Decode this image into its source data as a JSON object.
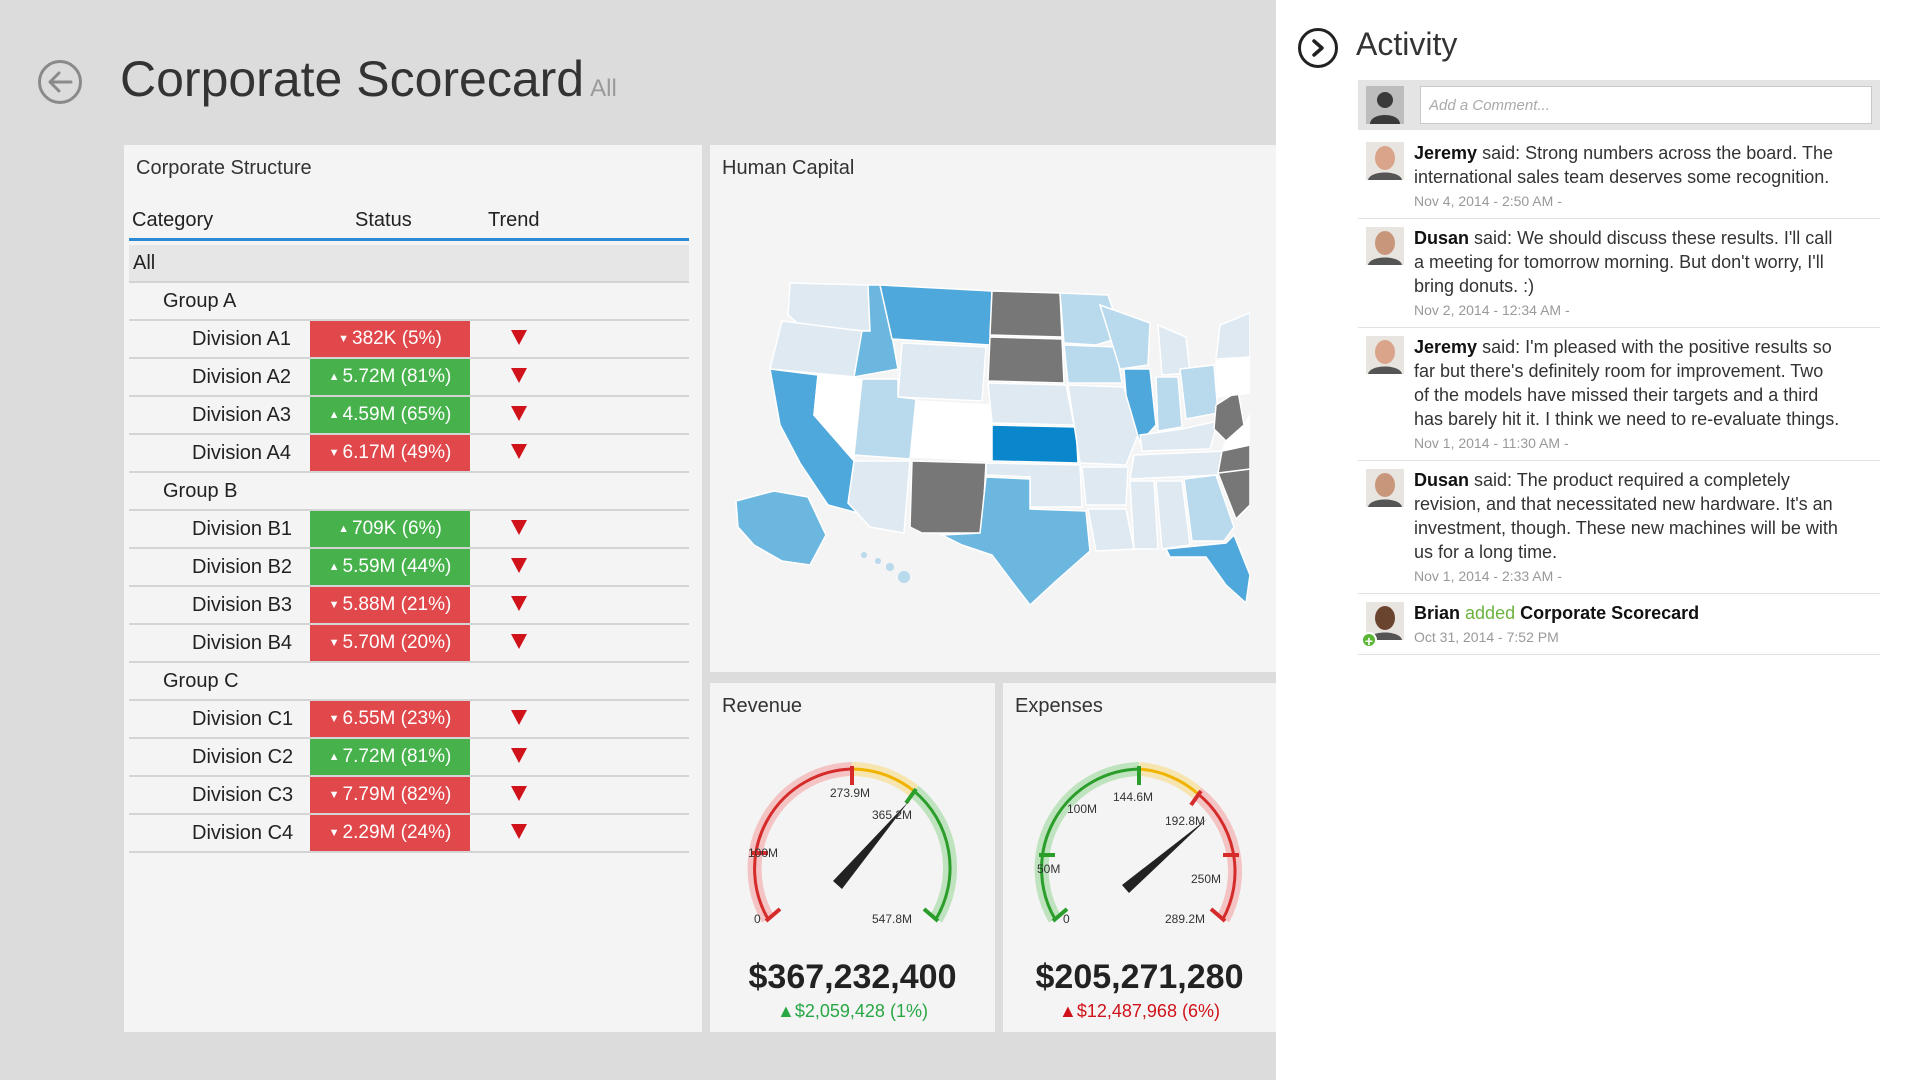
{
  "header": {
    "title": "Corporate Scorecard",
    "subtitle": "All"
  },
  "corporate_structure": {
    "title": "Corporate Structure",
    "columns": [
      "Category",
      "Status",
      "Trend"
    ],
    "all_label": "All",
    "groups": [
      {
        "name": "Group A",
        "divisions": [
          {
            "name": "Division A1",
            "status": "382K (5%)",
            "direction": "down",
            "color": "red"
          },
          {
            "name": "Division A2",
            "status": "5.72M (81%)",
            "direction": "up",
            "color": "green"
          },
          {
            "name": "Division A3",
            "status": "4.59M (65%)",
            "direction": "up",
            "color": "green"
          },
          {
            "name": "Division A4",
            "status": "6.17M (49%)",
            "direction": "down",
            "color": "red"
          }
        ]
      },
      {
        "name": "Group B",
        "divisions": [
          {
            "name": "Division B1",
            "status": "709K (6%)",
            "direction": "up",
            "color": "green"
          },
          {
            "name": "Division B2",
            "status": "5.59M (44%)",
            "direction": "up",
            "color": "green"
          },
          {
            "name": "Division B3",
            "status": "5.88M (21%)",
            "direction": "down",
            "color": "red"
          },
          {
            "name": "Division B4",
            "status": "5.70M (20%)",
            "direction": "down",
            "color": "red"
          }
        ]
      },
      {
        "name": "Group C",
        "divisions": [
          {
            "name": "Division C1",
            "status": "6.55M (23%)",
            "direction": "down",
            "color": "red"
          },
          {
            "name": "Division C2",
            "status": "7.72M (81%)",
            "direction": "up",
            "color": "green"
          },
          {
            "name": "Division C3",
            "status": "7.79M (82%)",
            "direction": "down",
            "color": "red"
          },
          {
            "name": "Division C4",
            "status": "2.29M (24%)",
            "direction": "down",
            "color": "red"
          }
        ]
      }
    ],
    "trend": "down"
  },
  "human_capital": {
    "title": "Human Capital",
    "palette": {
      "light": "#dfe9f1",
      "mid": "#b9d9ec",
      "strong": "#6cb7e0",
      "bright": "#4fa8db",
      "highlight": "#0a86cc",
      "grey": "#777777"
    }
  },
  "revenue": {
    "title": "Revenue",
    "value": "$367,232,400",
    "delta": "$2,059,428 (1%)",
    "delta_direction": "up",
    "tick_labels": [
      "0",
      "100M",
      "273.9M",
      "365.2M",
      "547.8M"
    ],
    "needle_value": "365.2M"
  },
  "expenses": {
    "title": "Expenses",
    "value": "$205,271,280",
    "delta": "$12,487,968 (6%)",
    "delta_direction": "up",
    "tick_labels": [
      "0",
      "50M",
      "100M",
      "144.6M",
      "192.8M",
      "250M",
      "289.2M"
    ],
    "needle_value": "192.8M"
  },
  "activity": {
    "title": "Activity",
    "comment_placeholder": "Add a Comment...",
    "entries": [
      {
        "author": "Jeremy",
        "verb": "said:",
        "text": "Strong numbers across the board. The international sales team deserves some recognition.",
        "time": "Nov 4, 2014 - 2:50 AM -"
      },
      {
        "author": "Dusan",
        "verb": "said:",
        "text": "We should discuss these results. I'll call a meeting for tomorrow morning. But don't worry, I'll bring donuts. :)",
        "time": "Nov 2, 2014 - 12:34 AM -"
      },
      {
        "author": "Jeremy",
        "verb": "said:",
        "text": "I'm pleased with the positive results so far but there's definitely room for improvement. Two of the models have missed their targets and a third has barely hit it. I think we need to re-evaluate things.",
        "time": "Nov 1, 2014 - 11:30 AM -"
      },
      {
        "author": "Dusan",
        "verb": "said:",
        "text": "The product required a completely revision, and that necessitated new hardware. It's an investment, though. These new machines will be with us for a long time.",
        "time": "Nov 1, 2014 - 2:33 AM -"
      }
    ],
    "added_entry": {
      "author": "Brian",
      "verb": "added",
      "object": "Corporate Scorecard",
      "time": "Oct 31, 2014 - 7:52 PM"
    }
  },
  "icons": {
    "back": "back-arrow-icon",
    "toggle": "chevron-right-circle-icon",
    "avatar": "user-avatar-icon",
    "trend": "triangle-down-icon"
  }
}
